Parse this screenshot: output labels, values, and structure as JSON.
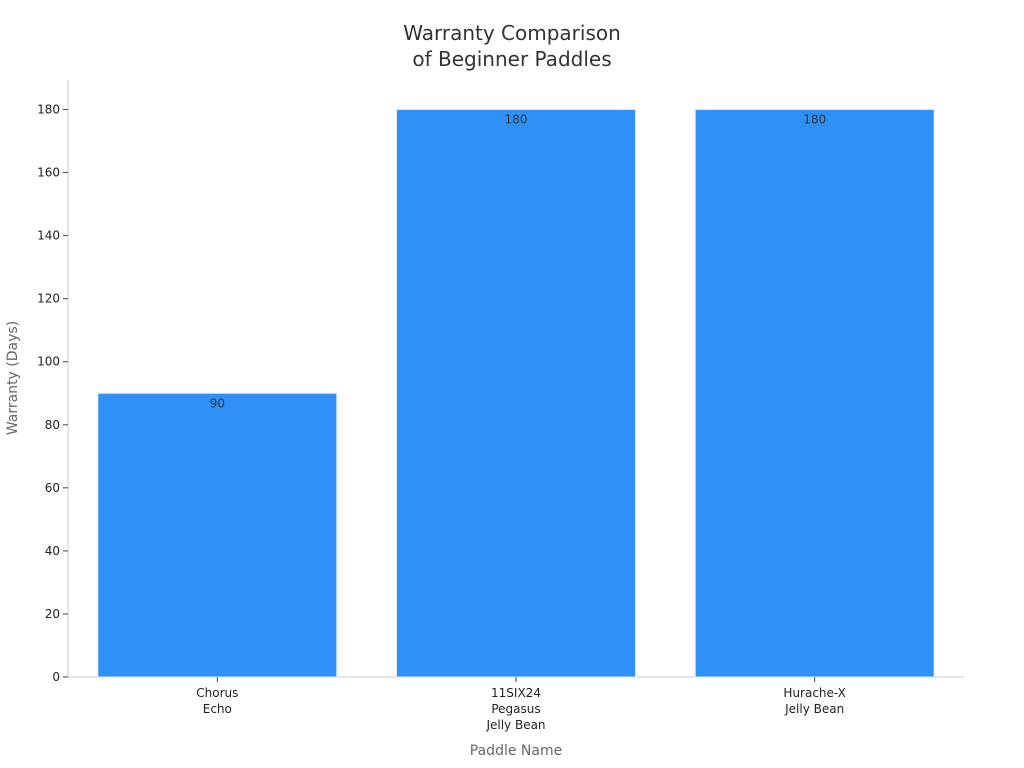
{
  "chart_data": {
    "type": "bar",
    "title_lines": [
      "Warranty Comparison",
      "of Beginner Paddles"
    ],
    "xlabel": "Paddle Name",
    "ylabel": "Warranty (Days)",
    "categories": [
      [
        "Chorus",
        "Echo"
      ],
      [
        "11SIX24",
        "Pegasus",
        "Jelly Bean"
      ],
      [
        "Hurache-X",
        "Jelly Bean"
      ]
    ],
    "values": [
      90,
      180,
      180
    ],
    "data_labels": [
      "90",
      "180",
      "180"
    ],
    "ylim": [
      0,
      190
    ],
    "yticks": [
      0,
      20,
      40,
      60,
      80,
      100,
      120,
      140,
      160,
      180
    ],
    "bar_color": "#2f90f8",
    "grid": false,
    "legend": "none"
  }
}
